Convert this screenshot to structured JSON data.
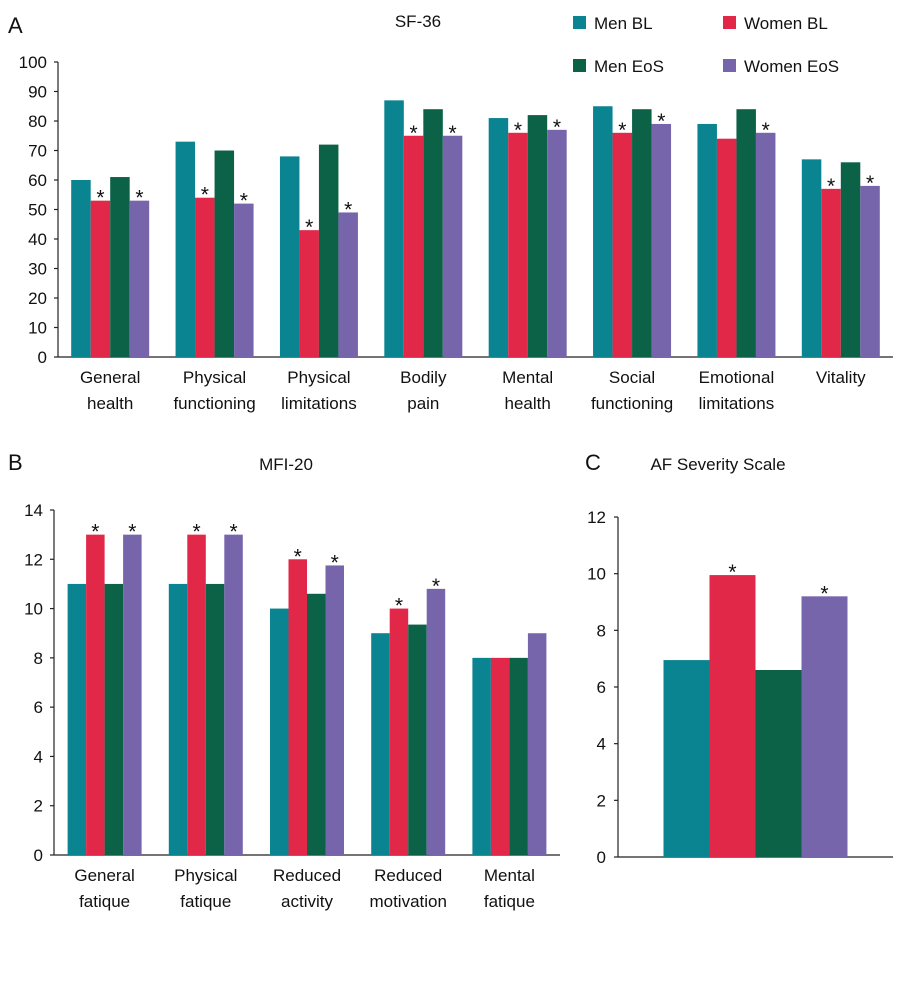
{
  "colors": {
    "men_bl": "#0a8490",
    "women_bl": "#e12848",
    "men_eos": "#0b6247",
    "women_eos": "#7765ac"
  },
  "legend": {
    "items": [
      {
        "label": "Men BL",
        "color": "#0a8490"
      },
      {
        "label": "Women BL",
        "color": "#e12848"
      },
      {
        "label": "Men EoS",
        "color": "#0b6247"
      },
      {
        "label": "Women EoS",
        "color": "#7765ac"
      }
    ]
  },
  "chart_data": [
    {
      "panel": "A",
      "type": "bar",
      "title": "SF-36",
      "categories": [
        [
          "General",
          "health"
        ],
        [
          "Physical",
          "functioning"
        ],
        [
          "Physical",
          "limitations"
        ],
        [
          "Bodily",
          "pain"
        ],
        [
          "Mental",
          "health"
        ],
        [
          "Social",
          "functioning"
        ],
        [
          "Emotional",
          "limitations"
        ],
        [
          "Vitality"
        ]
      ],
      "ylim": [
        0,
        100
      ],
      "yticks": [
        0,
        10,
        20,
        30,
        40,
        50,
        60,
        70,
        80,
        90,
        100
      ],
      "series": [
        {
          "name": "Men BL",
          "values": [
            60,
            73,
            68,
            87,
            81,
            85,
            79,
            67
          ],
          "stars": [
            false,
            false,
            false,
            false,
            false,
            false,
            false,
            false
          ]
        },
        {
          "name": "Women BL",
          "values": [
            53,
            54,
            43,
            75,
            76,
            76,
            74,
            57
          ],
          "stars": [
            true,
            true,
            true,
            true,
            true,
            true,
            false,
            true
          ]
        },
        {
          "name": "Men EoS",
          "values": [
            61,
            70,
            72,
            84,
            82,
            84,
            84,
            66
          ],
          "stars": [
            false,
            false,
            false,
            false,
            false,
            false,
            false,
            false
          ]
        },
        {
          "name": "Women EoS",
          "values": [
            53,
            52,
            49,
            75,
            77,
            79,
            76,
            58
          ],
          "stars": [
            true,
            true,
            true,
            true,
            true,
            true,
            true,
            true
          ]
        }
      ],
      "star_symbol": "*"
    },
    {
      "panel": "B",
      "type": "bar",
      "title": "MFI-20",
      "categories": [
        [
          "General",
          "fatique"
        ],
        [
          "Physical",
          "fatique"
        ],
        [
          "Reduced",
          "activity"
        ],
        [
          "Reduced",
          "motivation"
        ],
        [
          "Mental",
          "fatique"
        ]
      ],
      "ylim": [
        0,
        14
      ],
      "yticks": [
        0,
        2,
        4,
        6,
        8,
        10,
        12,
        14
      ],
      "series": [
        {
          "name": "Men BL",
          "values": [
            11,
            11,
            10,
            9,
            8
          ],
          "stars": [
            false,
            false,
            false,
            false,
            false
          ]
        },
        {
          "name": "Women BL",
          "values": [
            13,
            13,
            12,
            10,
            8
          ],
          "stars": [
            true,
            true,
            true,
            true,
            false
          ]
        },
        {
          "name": "Men EoS",
          "values": [
            11,
            11,
            10.6,
            9.35,
            8
          ],
          "stars": [
            false,
            false,
            false,
            false,
            false
          ]
        },
        {
          "name": "Women EoS",
          "values": [
            13,
            13,
            11.75,
            10.8,
            9
          ],
          "stars": [
            true,
            true,
            true,
            true,
            false
          ]
        }
      ],
      "star_symbol": "*"
    },
    {
      "panel": "C",
      "type": "bar",
      "title": "AF Severity Scale",
      "categories": [
        [
          ""
        ]
      ],
      "ylim": [
        0,
        12
      ],
      "yticks": [
        0,
        2,
        4,
        6,
        8,
        10,
        12
      ],
      "series": [
        {
          "name": "Men BL",
          "values": [
            6.95
          ],
          "stars": [
            false
          ]
        },
        {
          "name": "Women BL",
          "values": [
            9.95
          ],
          "stars": [
            true
          ]
        },
        {
          "name": "Men EoS",
          "values": [
            6.6
          ],
          "stars": [
            false
          ]
        },
        {
          "name": "Women EoS",
          "values": [
            9.2
          ],
          "stars": [
            true
          ]
        }
      ],
      "star_symbol": "*"
    }
  ]
}
